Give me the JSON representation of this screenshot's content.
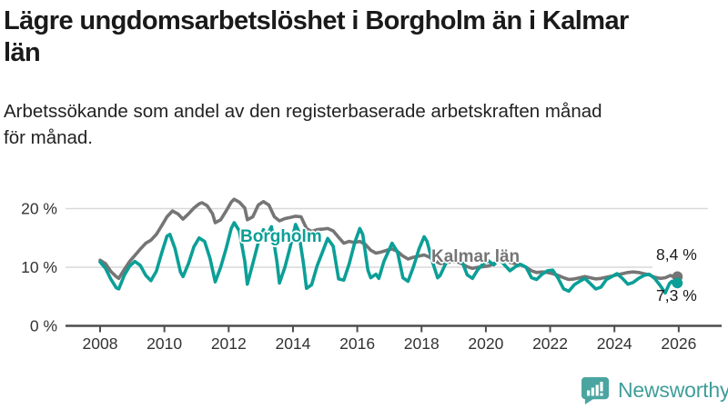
{
  "header": {
    "title_lines": [
      "Lägre ungdomsarbetslöshet i Borgholm än i Kalmar",
      "län"
    ],
    "subtitle_lines": [
      "Arbetssökande som andel av den registerbaserade arbetskraften månad",
      "för månad."
    ]
  },
  "chart_data": {
    "type": "line",
    "title": "Lägre ungdomsarbetslöshet i Borgholm än i Kalmar län",
    "subtitle": "Arbetssökande som andel av den registerbaserade arbetskraften månad för månad.",
    "unit": "%",
    "grid": true,
    "x_axis": {
      "ticks": [
        2008,
        2010,
        2012,
        2014,
        2016,
        2018,
        2020,
        2022,
        2024,
        2026
      ],
      "range": [
        2007.5,
        2026.6
      ]
    },
    "y_axis": {
      "ticks": [
        {
          "value": 0,
          "label": "0 %"
        },
        {
          "value": 10,
          "label": "10 %"
        },
        {
          "value": 20,
          "label": "20 %"
        }
      ],
      "range": [
        0,
        23
      ]
    },
    "colors": {
      "borgholm": "#0b9f97",
      "kalmar": "#757575",
      "grid": "#d9d9d9",
      "axis": "#4d4d4d"
    },
    "series": [
      {
        "name": "Borgholm",
        "color": "#0b9f97",
        "end_label": "7,3 %",
        "end_value": 7.3,
        "points": [
          [
            2008.0,
            10.9
          ],
          [
            2008.17,
            9.8
          ],
          [
            2008.33,
            8.0
          ],
          [
            2008.5,
            6.5
          ],
          [
            2008.58,
            6.3
          ],
          [
            2008.75,
            8.6
          ],
          [
            2008.92,
            10.2
          ],
          [
            2009.08,
            11.0
          ],
          [
            2009.25,
            10.3
          ],
          [
            2009.42,
            8.6
          ],
          [
            2009.58,
            7.7
          ],
          [
            2009.75,
            9.3
          ],
          [
            2009.92,
            12.5
          ],
          [
            2010.08,
            15.3
          ],
          [
            2010.17,
            15.6
          ],
          [
            2010.33,
            13.2
          ],
          [
            2010.5,
            9.2
          ],
          [
            2010.58,
            8.4
          ],
          [
            2010.75,
            10.6
          ],
          [
            2010.92,
            13.5
          ],
          [
            2011.08,
            15.0
          ],
          [
            2011.25,
            14.4
          ],
          [
            2011.42,
            11.5
          ],
          [
            2011.58,
            7.5
          ],
          [
            2011.75,
            10.0
          ],
          [
            2011.92,
            13.2
          ],
          [
            2012.08,
            16.6
          ],
          [
            2012.17,
            17.6
          ],
          [
            2012.33,
            16.2
          ],
          [
            2012.5,
            11.0
          ],
          [
            2012.58,
            7.1
          ],
          [
            2012.75,
            10.6
          ],
          [
            2012.92,
            14.2
          ],
          [
            2013.08,
            16.4
          ],
          [
            2013.17,
            15.2
          ],
          [
            2013.33,
            16.9
          ],
          [
            2013.5,
            11.0
          ],
          [
            2013.58,
            7.3
          ],
          [
            2013.75,
            10.0
          ],
          [
            2013.92,
            13.6
          ],
          [
            2014.08,
            17.3
          ],
          [
            2014.17,
            16.2
          ],
          [
            2014.33,
            10.5
          ],
          [
            2014.42,
            6.4
          ],
          [
            2014.58,
            7.0
          ],
          [
            2014.75,
            10.2
          ],
          [
            2014.92,
            12.6
          ],
          [
            2015.08,
            14.9
          ],
          [
            2015.25,
            13.6
          ],
          [
            2015.42,
            8.0
          ],
          [
            2015.58,
            7.8
          ],
          [
            2015.75,
            10.6
          ],
          [
            2015.92,
            14.2
          ],
          [
            2016.08,
            16.6
          ],
          [
            2016.17,
            15.6
          ],
          [
            2016.33,
            9.5
          ],
          [
            2016.42,
            8.2
          ],
          [
            2016.58,
            8.8
          ],
          [
            2016.67,
            8.1
          ],
          [
            2016.83,
            11.0
          ],
          [
            2017.08,
            14.1
          ],
          [
            2017.25,
            12.6
          ],
          [
            2017.42,
            8.2
          ],
          [
            2017.58,
            7.6
          ],
          [
            2017.75,
            10.1
          ],
          [
            2017.92,
            13.1
          ],
          [
            2018.08,
            15.2
          ],
          [
            2018.17,
            14.4
          ],
          [
            2018.33,
            11.1
          ],
          [
            2018.5,
            8.2
          ],
          [
            2018.58,
            8.6
          ],
          [
            2018.75,
            10.6
          ],
          [
            2018.92,
            11.6
          ],
          [
            2019.08,
            12.1
          ],
          [
            2019.25,
            11.1
          ],
          [
            2019.42,
            8.7
          ],
          [
            2019.58,
            8.1
          ],
          [
            2019.75,
            9.6
          ],
          [
            2019.92,
            10.6
          ],
          [
            2020.08,
            11.1
          ],
          [
            2020.25,
            10.4
          ],
          [
            2020.42,
            11.4
          ],
          [
            2020.58,
            10.4
          ],
          [
            2020.75,
            9.4
          ],
          [
            2020.92,
            10.1
          ],
          [
            2021.08,
            10.5
          ],
          [
            2021.25,
            10.0
          ],
          [
            2021.42,
            8.2
          ],
          [
            2021.58,
            7.9
          ],
          [
            2021.75,
            8.8
          ],
          [
            2021.92,
            9.4
          ],
          [
            2022.08,
            9.5
          ],
          [
            2022.25,
            8.1
          ],
          [
            2022.42,
            6.3
          ],
          [
            2022.58,
            5.9
          ],
          [
            2022.75,
            7.0
          ],
          [
            2022.92,
            7.6
          ],
          [
            2023.08,
            8.1
          ],
          [
            2023.25,
            7.2
          ],
          [
            2023.42,
            6.3
          ],
          [
            2023.58,
            6.6
          ],
          [
            2023.75,
            7.9
          ],
          [
            2023.92,
            8.4
          ],
          [
            2024.08,
            8.9
          ],
          [
            2024.25,
            8.1
          ],
          [
            2024.42,
            7.1
          ],
          [
            2024.58,
            7.4
          ],
          [
            2024.75,
            8.1
          ],
          [
            2024.92,
            8.6
          ],
          [
            2025.08,
            8.8
          ],
          [
            2025.25,
            8.1
          ],
          [
            2025.42,
            6.9
          ],
          [
            2025.58,
            5.6
          ],
          [
            2025.71,
            7.2
          ],
          [
            2025.79,
            7.6
          ],
          [
            2025.87,
            6.9
          ],
          [
            2025.96,
            7.3
          ]
        ]
      },
      {
        "name": "Kalmar län",
        "color": "#757575",
        "end_label": "8,4 %",
        "end_value": 8.4,
        "points": [
          [
            2008.0,
            11.2
          ],
          [
            2008.17,
            10.6
          ],
          [
            2008.33,
            9.3
          ],
          [
            2008.5,
            8.4
          ],
          [
            2008.58,
            8.1
          ],
          [
            2008.75,
            9.6
          ],
          [
            2008.92,
            11.0
          ],
          [
            2009.08,
            12.0
          ],
          [
            2009.25,
            13.1
          ],
          [
            2009.42,
            14.1
          ],
          [
            2009.58,
            14.6
          ],
          [
            2009.75,
            15.6
          ],
          [
            2009.92,
            17.1
          ],
          [
            2010.08,
            18.6
          ],
          [
            2010.25,
            19.6
          ],
          [
            2010.42,
            19.1
          ],
          [
            2010.58,
            18.2
          ],
          [
            2010.75,
            19.1
          ],
          [
            2010.92,
            20.1
          ],
          [
            2011.08,
            20.8
          ],
          [
            2011.17,
            21.0
          ],
          [
            2011.33,
            20.5
          ],
          [
            2011.5,
            19.1
          ],
          [
            2011.58,
            17.6
          ],
          [
            2011.75,
            18.1
          ],
          [
            2011.92,
            19.6
          ],
          [
            2012.08,
            21.1
          ],
          [
            2012.17,
            21.6
          ],
          [
            2012.33,
            21.1
          ],
          [
            2012.5,
            20.1
          ],
          [
            2012.58,
            18.1
          ],
          [
            2012.75,
            18.6
          ],
          [
            2012.92,
            20.6
          ],
          [
            2013.08,
            21.2
          ],
          [
            2013.25,
            20.6
          ],
          [
            2013.42,
            18.6
          ],
          [
            2013.58,
            17.9
          ],
          [
            2013.75,
            18.3
          ],
          [
            2013.92,
            18.5
          ],
          [
            2014.08,
            18.7
          ],
          [
            2014.25,
            18.6
          ],
          [
            2014.42,
            16.6
          ],
          [
            2014.58,
            16.1
          ],
          [
            2014.75,
            16.4
          ],
          [
            2014.92,
            16.5
          ],
          [
            2015.08,
            16.6
          ],
          [
            2015.25,
            16.2
          ],
          [
            2015.42,
            15.1
          ],
          [
            2015.58,
            14.1
          ],
          [
            2015.75,
            14.4
          ],
          [
            2015.92,
            14.2
          ],
          [
            2016.08,
            14.4
          ],
          [
            2016.25,
            13.9
          ],
          [
            2016.42,
            12.9
          ],
          [
            2016.58,
            12.4
          ],
          [
            2016.75,
            12.6
          ],
          [
            2016.92,
            12.9
          ],
          [
            2017.08,
            13.1
          ],
          [
            2017.25,
            12.7
          ],
          [
            2017.42,
            11.9
          ],
          [
            2017.58,
            11.4
          ],
          [
            2017.75,
            11.7
          ],
          [
            2017.92,
            11.9
          ],
          [
            2018.08,
            12.1
          ],
          [
            2018.25,
            11.7
          ],
          [
            2018.42,
            11.1
          ],
          [
            2018.58,
            10.6
          ],
          [
            2018.75,
            10.8
          ],
          [
            2018.92,
            10.9
          ],
          [
            2019.08,
            11.0
          ],
          [
            2019.25,
            10.6
          ],
          [
            2019.42,
            10.1
          ],
          [
            2019.58,
            9.8
          ],
          [
            2019.75,
            10.0
          ],
          [
            2019.92,
            10.1
          ],
          [
            2020.08,
            10.2
          ],
          [
            2020.25,
            10.6
          ],
          [
            2020.42,
            11.3
          ],
          [
            2020.58,
            11.1
          ],
          [
            2020.75,
            10.8
          ],
          [
            2020.92,
            10.6
          ],
          [
            2021.08,
            10.4
          ],
          [
            2021.25,
            10.0
          ],
          [
            2021.42,
            9.4
          ],
          [
            2021.58,
            9.1
          ],
          [
            2021.75,
            9.2
          ],
          [
            2021.92,
            9.1
          ],
          [
            2022.08,
            8.9
          ],
          [
            2022.25,
            8.6
          ],
          [
            2022.42,
            8.2
          ],
          [
            2022.58,
            7.9
          ],
          [
            2022.75,
            8.0
          ],
          [
            2022.92,
            8.2
          ],
          [
            2023.08,
            8.4
          ],
          [
            2023.25,
            8.2
          ],
          [
            2023.42,
            8.0
          ],
          [
            2023.58,
            8.1
          ],
          [
            2023.75,
            8.3
          ],
          [
            2023.92,
            8.5
          ],
          [
            2024.08,
            8.7
          ],
          [
            2024.25,
            8.9
          ],
          [
            2024.42,
            9.1
          ],
          [
            2024.58,
            9.2
          ],
          [
            2024.75,
            9.1
          ],
          [
            2024.92,
            8.9
          ],
          [
            2025.08,
            8.7
          ],
          [
            2025.25,
            8.3
          ],
          [
            2025.42,
            8.1
          ],
          [
            2025.58,
            8.2
          ],
          [
            2025.75,
            8.6
          ],
          [
            2025.87,
            8.2
          ],
          [
            2025.96,
            8.4
          ]
        ]
      }
    ],
    "legend_position": "inline-labels"
  },
  "logo": {
    "text": "Newsworthy",
    "icon": "bar-chart-speech-bubble-icon",
    "color": "#3f9e99",
    "icon_color": "#4aa5a0"
  }
}
